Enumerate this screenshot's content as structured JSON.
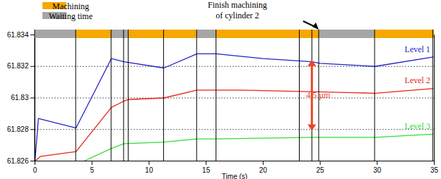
{
  "chart_data": {
    "type": "line",
    "x_label": "Time (s)",
    "xlim": [
      0,
      35
    ],
    "xticks": [
      0,
      5,
      10,
      15,
      20,
      25,
      30,
      35
    ],
    "ylim": [
      61.826,
      61.834
    ],
    "yticks": [
      61.826,
      61.828,
      61.83,
      61.832,
      61.834
    ],
    "grid": true,
    "series": [
      {
        "name": "Level 1",
        "color": "#2222cc",
        "x": [
          0,
          0.3,
          3.6,
          6.7,
          7.8,
          11.3,
          14.2,
          15.9,
          20,
          24.3,
          25,
          29.8,
          34.9
        ],
        "values": [
          61.826,
          61.8287,
          61.8281,
          61.8325,
          61.8323,
          61.8319,
          61.8328,
          61.8328,
          61.8325,
          61.8323,
          61.8322,
          61.832,
          61.8326
        ]
      },
      {
        "name": "Level 2",
        "color": "#e8231a",
        "x": [
          0,
          0.5,
          3.6,
          6.7,
          7.8,
          8.2,
          11.3,
          14.2,
          15.9,
          18,
          24.3,
          29.8,
          34.9
        ],
        "values": [
          61.826,
          61.8263,
          61.8266,
          61.8294,
          61.8298,
          61.8299,
          61.83,
          61.8305,
          61.8305,
          61.8305,
          61.8304,
          61.8303,
          61.8306
        ]
      },
      {
        "name": "Level 3",
        "color": "#33dd33",
        "x": [
          4.3,
          6.7,
          7.8,
          11.3,
          14.2,
          15.9,
          24.3,
          29.8,
          34.9
        ],
        "values": [
          61.826,
          61.8268,
          61.8271,
          61.8272,
          61.8274,
          61.8274,
          61.8275,
          61.8275,
          61.8277
        ]
      }
    ],
    "phase_legend": [
      {
        "name": "Machining",
        "color": "#f7a800"
      },
      {
        "name": "Waiting time",
        "color": "#a6a6a6"
      }
    ],
    "phases": [
      {
        "start": 0,
        "end": 3.6,
        "phase": "Waiting time"
      },
      {
        "start": 3.6,
        "end": 6.7,
        "phase": "Machining"
      },
      {
        "start": 6.7,
        "end": 8.2,
        "phase": "Waiting time"
      },
      {
        "start": 8.2,
        "end": 14.2,
        "phase": "Machining"
      },
      {
        "start": 14.2,
        "end": 15.9,
        "phase": "Waiting time"
      },
      {
        "start": 15.9,
        "end": 24.9,
        "phase": "Machining"
      },
      {
        "start": 24.9,
        "end": 29.8,
        "phase": "Waiting time"
      },
      {
        "start": 29.8,
        "end": 35,
        "phase": "Machining"
      }
    ],
    "events": [
      0,
      3.6,
      6.7,
      7.8,
      8.2,
      11.3,
      14.2,
      15.9,
      23.2,
      24.3,
      24.9,
      29.8,
      34.9
    ],
    "annotations": [
      {
        "lines": [
          "Finish machining",
          "of cylinder 2"
        ],
        "x": 24.9
      },
      {
        "text": "4,5 µm",
        "x": 24.3,
        "y1": 61.8324,
        "y2": 61.8279
      }
    ]
  }
}
